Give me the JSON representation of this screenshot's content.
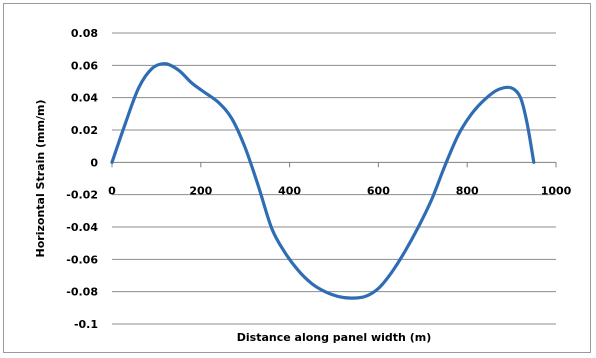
{
  "chart_data": {
    "type": "line",
    "title": "",
    "xlabel": "Distance along panel width (m)",
    "ylabel": "Horizontal Strain (mm/m)",
    "xlim": [
      0,
      1000
    ],
    "ylim": [
      -0.1,
      0.08
    ],
    "x_ticks": [
      0,
      200,
      400,
      600,
      800,
      1000
    ],
    "y_ticks": [
      0.08,
      0.06,
      0.04,
      0.02,
      0,
      -0.02,
      -0.04,
      -0.06,
      -0.08,
      -0.1
    ],
    "x_tick_labels": [
      "0",
      "200",
      "400",
      "600",
      "800",
      "1000"
    ],
    "y_tick_labels": [
      "0.08",
      "0.06",
      "0.04",
      "0.02",
      "0",
      "-0.02",
      "-0.04",
      "-0.06",
      "-0.08",
      "-0.1"
    ],
    "grid": "horizontal",
    "legend": "none",
    "series": [
      {
        "color": "#2e6db4",
        "x": [
          0,
          30,
          60,
          90,
          120,
          150,
          180,
          210,
          240,
          270,
          300,
          330,
          360,
          390,
          420,
          450,
          480,
          510,
          540,
          570,
          600,
          630,
          660,
          690,
          720,
          750,
          780,
          810,
          840,
          870,
          900,
          920,
          935,
          950
        ],
        "y": [
          0,
          0.024,
          0.046,
          0.058,
          0.061,
          0.057,
          0.049,
          0.043,
          0.037,
          0.027,
          0.009,
          -0.015,
          -0.041,
          -0.056,
          -0.067,
          -0.075,
          -0.08,
          -0.083,
          -0.084,
          -0.083,
          -0.078,
          -0.068,
          -0.055,
          -0.04,
          -0.023,
          -0.002,
          0.017,
          0.03,
          0.039,
          0.045,
          0.046,
          0.04,
          0.024,
          0
        ]
      }
    ]
  }
}
